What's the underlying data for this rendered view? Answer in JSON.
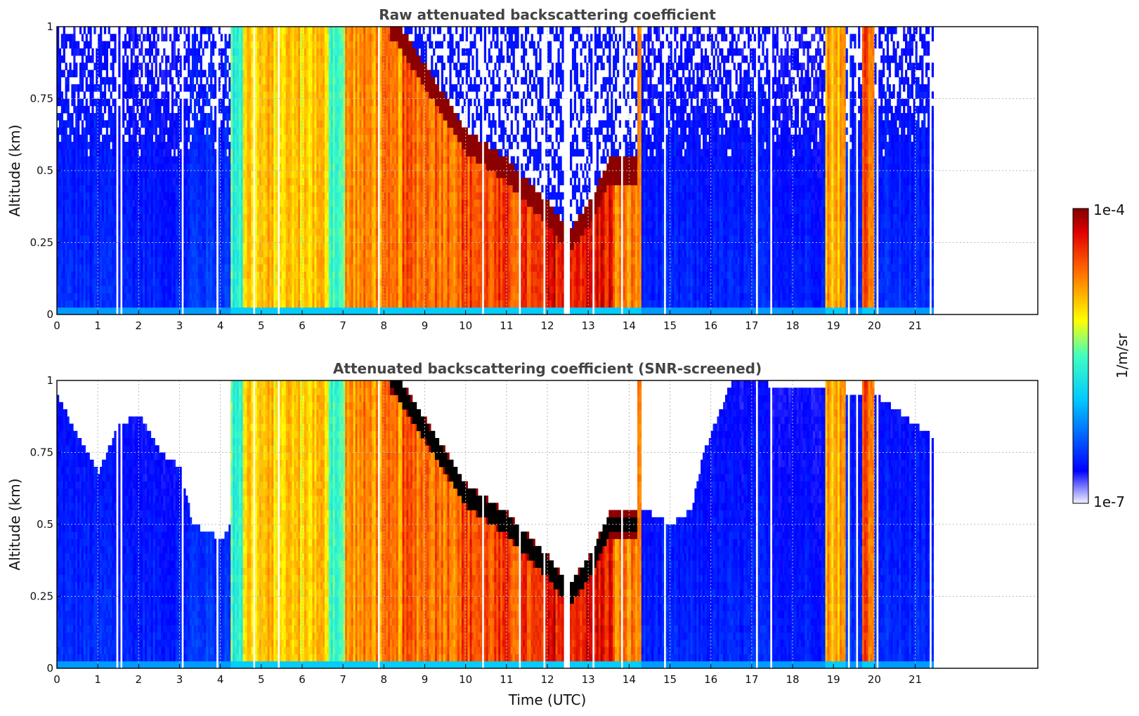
{
  "chart_data": [
    {
      "type": "heatmap",
      "title": "Raw attenuated backscattering coefficient",
      "xlabel": "",
      "ylabel": "Altitude (km)",
      "xlim": [
        0,
        24
      ],
      "ylim": [
        0,
        1
      ],
      "x_ticks": [
        "0",
        "1",
        "2",
        "3",
        "4",
        "5",
        "6",
        "7",
        "8",
        "9",
        "10",
        "11",
        "12",
        "13",
        "14",
        "15",
        "16",
        "17",
        "18",
        "19",
        "20",
        "21"
      ],
      "y_ticks": [
        "0",
        "0.25",
        "0.5",
        "0.75",
        "1"
      ],
      "grid": true,
      "data_extent_hours": [
        0,
        21.45
      ],
      "profile_segments": [
        {
          "x": [
            0,
            1.7
          ],
          "level": 0.18
        },
        {
          "x": [
            1.7,
            3.2
          ],
          "level": 0.17
        },
        {
          "x": [
            3.2,
            4.2
          ],
          "level": 0.2
        },
        {
          "x": [
            4.2,
            4.5
          ],
          "level": 0.48
        },
        {
          "x": [
            4.5,
            6.6
          ],
          "level": 0.68
        },
        {
          "x": [
            6.6,
            7.0
          ],
          "level": 0.5
        },
        {
          "x": [
            7.0,
            8.4
          ],
          "level": 0.75
        },
        {
          "x": [
            8.4,
            9.8
          ],
          "level": 0.8
        },
        {
          "x": [
            9.8,
            12.0
          ],
          "level": 0.83
        },
        {
          "x": [
            12.0,
            13.6
          ],
          "level": 0.9
        },
        {
          "x": [
            13.6,
            14.3
          ],
          "level": 0.76
        },
        {
          "x": [
            14.3,
            18.8
          ],
          "level": 0.17
        },
        {
          "x": [
            18.8,
            19.3
          ],
          "level": 0.72
        },
        {
          "x": [
            19.3,
            19.7
          ],
          "level": 0.2
        },
        {
          "x": [
            19.7,
            20.0
          ],
          "level": 0.82
        },
        {
          "x": [
            20.0,
            21.45
          ],
          "level": 0.18
        }
      ],
      "dense_layer_top_km": [
        {
          "x": 8.2,
          "y": 1.0
        },
        {
          "x": 9.2,
          "y": 0.78
        },
        {
          "x": 10.0,
          "y": 0.6
        },
        {
          "x": 11.0,
          "y": 0.5
        },
        {
          "x": 12.0,
          "y": 0.35
        },
        {
          "x": 12.5,
          "y": 0.25
        },
        {
          "x": 13.0,
          "y": 0.35
        },
        {
          "x": 13.5,
          "y": 0.5
        },
        {
          "x": 14.1,
          "y": 0.5
        }
      ]
    },
    {
      "type": "heatmap",
      "title": "Attenuated backscattering coefficient (SNR-screened)",
      "xlabel": "Time (UTC)",
      "ylabel": "Altitude (km)",
      "xlim": [
        0,
        24
      ],
      "ylim": [
        0,
        1
      ],
      "x_ticks": [
        "0",
        "1",
        "2",
        "3",
        "4",
        "5",
        "6",
        "7",
        "8",
        "9",
        "10",
        "11",
        "12",
        "13",
        "14",
        "15",
        "16",
        "17",
        "18",
        "19",
        "20",
        "21"
      ],
      "y_ticks": [
        "0",
        "0.25",
        "0.5",
        "0.75",
        "1"
      ],
      "grid": true,
      "data_extent_hours": [
        0,
        21.45
      ],
      "screen_boundary_km": [
        {
          "x": 0.0,
          "y": 0.95
        },
        {
          "x": 0.5,
          "y": 0.8
        },
        {
          "x": 1.0,
          "y": 0.68
        },
        {
          "x": 1.5,
          "y": 0.85
        },
        {
          "x": 2.0,
          "y": 0.88
        },
        {
          "x": 2.5,
          "y": 0.75
        },
        {
          "x": 3.0,
          "y": 0.7
        },
        {
          "x": 3.3,
          "y": 0.5
        },
        {
          "x": 4.0,
          "y": 0.45
        },
        {
          "x": 4.2,
          "y": 0.5
        },
        {
          "x": 14.4,
          "y": 0.55
        },
        {
          "x": 15.0,
          "y": 0.5
        },
        {
          "x": 15.5,
          "y": 0.55
        },
        {
          "x": 15.8,
          "y": 0.75
        },
        {
          "x": 16.5,
          "y": 1.0
        },
        {
          "x": 20.0,
          "y": 0.95
        },
        {
          "x": 21.45,
          "y": 0.8
        }
      ],
      "colorbar": {
        "min_label": "1e-7",
        "max_label": "1e-4",
        "label": "1/m/sr",
        "colormap": "jet",
        "scale": "log"
      }
    }
  ]
}
